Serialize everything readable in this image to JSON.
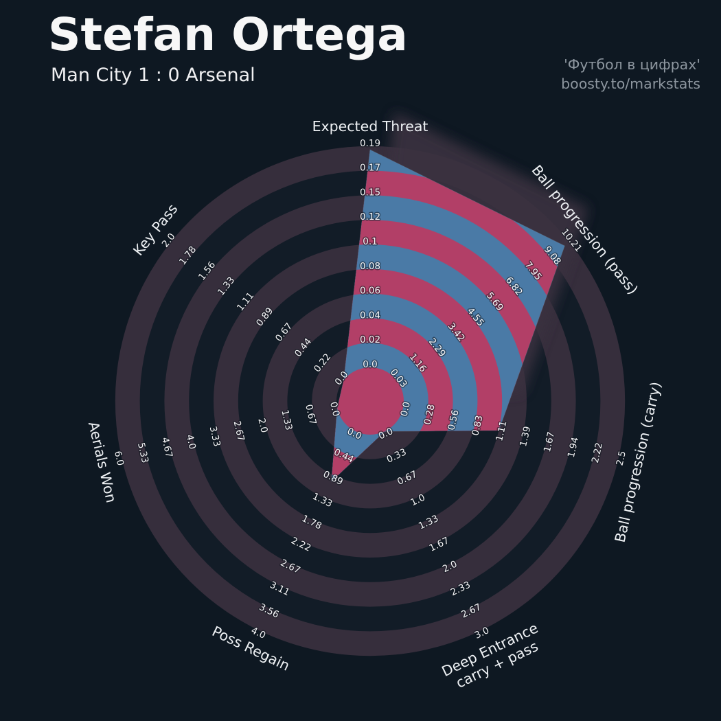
{
  "header": {
    "title": "Stefan Ortega",
    "subtitle": "Man City 1 : 0 Arsenal"
  },
  "credit": {
    "line1": "'Футбол в цифрах'",
    "line2": "boosty.to/markstats"
  },
  "colors": {
    "background": "#0e1822",
    "ring_dark": "#121c27",
    "ring_purple": "#362e3c",
    "radar_blue": "#4a7aa6",
    "radar_pink": "#b23f67",
    "shadow": "#3b3240",
    "text": "#f5f5f7",
    "muted_text": "#8d969f"
  },
  "chart_data": {
    "type": "radar",
    "num_rings": 9,
    "legend_position": "none",
    "grid": "alternating-rings",
    "axes": [
      {
        "lines": [
          "Expected Threat"
        ],
        "ticks": [
          "0.0",
          "0.02",
          "0.04",
          "0.06",
          "0.08",
          "0.1",
          "0.12",
          "0.15",
          "0.17",
          "0.19"
        ],
        "range": [
          0,
          0.19
        ],
        "value": 0.19,
        "ring": 8.85
      },
      {
        "lines": [
          "Ball progression (pass)"
        ],
        "ticks": [
          "0.03",
          "1.16",
          "2.29",
          "3.42",
          "4.55",
          "5.69",
          "6.82",
          "7.95",
          "9.08",
          "10.21"
        ],
        "range": [
          0.03,
          10.21
        ],
        "value": 9.93,
        "ring": 8.75
      },
      {
        "lines": [
          "Ball progression (carry)"
        ],
        "ticks": [
          "0.0",
          "0.28",
          "0.56",
          "0.83",
          "1.11",
          "1.39",
          "1.67",
          "1.94",
          "2.22",
          "2.5"
        ],
        "range": [
          0,
          2.5
        ],
        "value": 1.11,
        "ring": 4.0
      },
      {
        "lines": [
          "Deep Entrance",
          "carry + pass"
        ],
        "ticks": [
          "0.0",
          "0.33",
          "0.67",
          "1.0",
          "1.33",
          "1.67",
          "2.0",
          "2.33",
          "2.67",
          "3.0"
        ],
        "range": [
          0,
          3.0
        ],
        "value": 0.0,
        "ring": 0
      },
      {
        "lines": [
          "Poss Regain"
        ],
        "ticks": [
          "0.0",
          "0.44",
          "0.89",
          "1.33",
          "1.78",
          "2.22",
          "2.67",
          "3.11",
          "3.56",
          "4.0"
        ],
        "range": [
          0,
          4.0
        ],
        "value": 1.0,
        "ring": 2.25
      },
      {
        "lines": [
          "Aerials Won"
        ],
        "ticks": [
          "0.0",
          "0.67",
          "1.33",
          "2.0",
          "2.67",
          "3.33",
          "4.0",
          "4.67",
          "5.33",
          "6.0"
        ],
        "range": [
          0,
          6.0
        ],
        "value": 0.0,
        "ring": 0
      },
      {
        "lines": [
          "Key Pass"
        ],
        "ticks": [
          "0.0",
          "0.22",
          "0.44",
          "0.67",
          "0.89",
          "1.11",
          "1.33",
          "1.56",
          "1.78",
          "2.0"
        ],
        "range": [
          0,
          2.0
        ],
        "value": 0.0,
        "ring": 0
      }
    ]
  }
}
